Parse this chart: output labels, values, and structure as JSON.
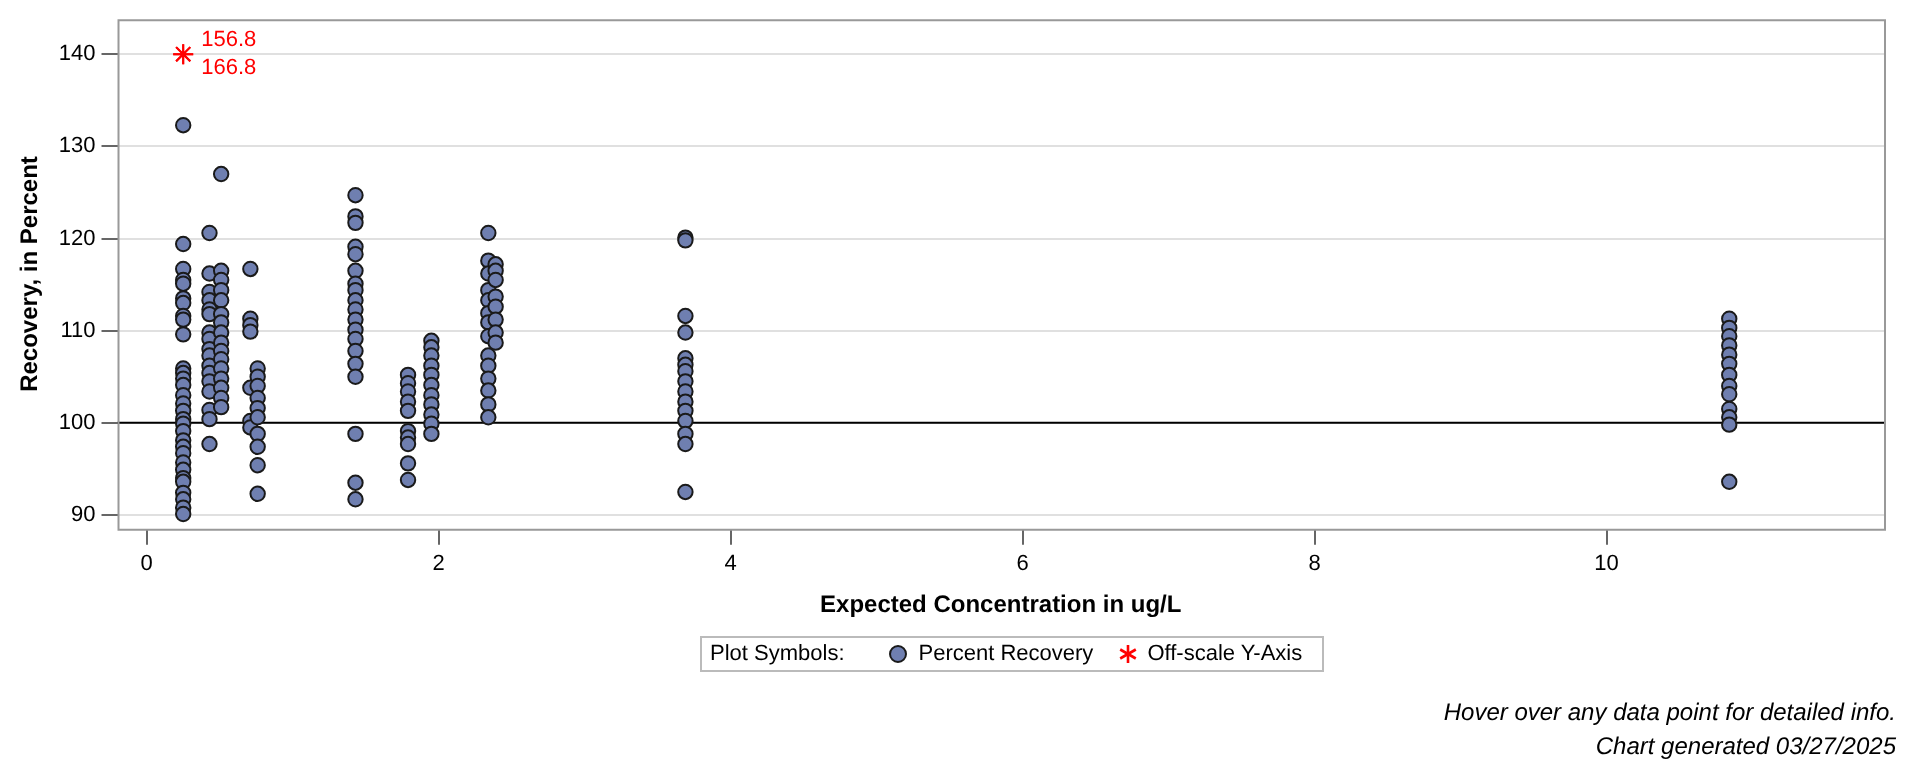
{
  "chart_data": {
    "type": "scatter",
    "xlabel": "Expected Concentration in ug/L",
    "ylabel": "Recovery, in Percent",
    "legend_title": "Plot Symbols:",
    "xlim": [
      -0.2,
      11.9
    ],
    "xticks": [
      0,
      2,
      4,
      6,
      8,
      10
    ],
    "ylim": [
      88.5,
      143.8
    ],
    "yticks": [
      90,
      100,
      110,
      120,
      130,
      140
    ],
    "grid": "y",
    "legend": "bottom",
    "ref_lines": [
      {
        "axis": "y",
        "value": 100,
        "color": "#000000"
      }
    ],
    "annotations": [
      {
        "text": "156.8",
        "x": 0.25,
        "y": 140
      },
      {
        "text": "166.8",
        "x": 0.25,
        "y": 140
      },
      "Hover over any data point for detailed info.",
      "Chart generated 03/27/2025"
    ],
    "series": [
      {
        "name": "Percent Recovery",
        "color": "#6f7fb0",
        "marker": "circle",
        "x": [
          0.25,
          0.25,
          0.25,
          0.25,
          0.25,
          0.25,
          0.25,
          0.25,
          0.25,
          0.25,
          0.25,
          0.25,
          0.25,
          0.25,
          0.25,
          0.25,
          0.25,
          0.25,
          0.25,
          0.25,
          0.25,
          0.25,
          0.25,
          0.25,
          0.25,
          0.25,
          0.25,
          0.25,
          0.25,
          0.25,
          0.25,
          0.43,
          0.43,
          0.43,
          0.43,
          0.43,
          0.43,
          0.43,
          0.43,
          0.43,
          0.43,
          0.43,
          0.43,
          0.43,
          0.43,
          0.43,
          0.43,
          0.43,
          0.51,
          0.51,
          0.51,
          0.51,
          0.51,
          0.51,
          0.51,
          0.51,
          0.51,
          0.51,
          0.51,
          0.51,
          0.51,
          0.51,
          0.51,
          0.51,
          0.71,
          0.71,
          0.71,
          0.71,
          0.71,
          0.71,
          0.71,
          0.76,
          0.76,
          0.76,
          0.76,
          0.76,
          0.76,
          0.76,
          0.76,
          0.76,
          0.76,
          1.43,
          1.43,
          1.43,
          1.43,
          1.43,
          1.43,
          1.43,
          1.43,
          1.43,
          1.43,
          1.43,
          1.43,
          1.43,
          1.43,
          1.43,
          1.43,
          1.43,
          1.43,
          1.43,
          1.79,
          1.79,
          1.79,
          1.79,
          1.79,
          1.79,
          1.79,
          1.79,
          1.79,
          1.79,
          1.95,
          1.95,
          1.95,
          1.95,
          1.95,
          1.95,
          1.95,
          1.95,
          1.95,
          1.95,
          1.95,
          2.34,
          2.34,
          2.34,
          2.34,
          2.34,
          2.34,
          2.34,
          2.34,
          2.34,
          2.34,
          2.34,
          2.34,
          2.34,
          2.34,
          2.39,
          2.39,
          2.39,
          2.39,
          2.39,
          2.39,
          2.39,
          2.39,
          3.69,
          3.69,
          3.69,
          3.69,
          3.69,
          3.69,
          3.69,
          3.69,
          3.69,
          3.69,
          3.69,
          3.69,
          3.69,
          3.69,
          3.69,
          10.84,
          10.84,
          10.84,
          10.84,
          10.84,
          10.84,
          10.84,
          10.84,
          10.84,
          10.84,
          10.84,
          10.84,
          10.84
        ],
        "values": [
          132.3,
          119.4,
          116.7,
          115.5,
          115.1,
          113.5,
          113,
          111.6,
          111.2,
          109.6,
          105.9,
          105.4,
          104.8,
          104.1,
          103,
          102.1,
          101.3,
          100.4,
          99.9,
          99.1,
          98.1,
          97.4,
          96.7,
          95.7,
          94.9,
          94,
          93.6,
          92.4,
          91.7,
          90.8,
          90.1,
          120.6,
          116.2,
          114.2,
          113.3,
          112.3,
          111.8,
          109.8,
          109.1,
          108,
          107.3,
          106.2,
          105.4,
          104.5,
          103.4,
          101.4,
          100.4,
          97.7,
          127,
          116.5,
          115.5,
          114.4,
          113.3,
          111.8,
          110.9,
          109.8,
          108.7,
          107.8,
          106.9,
          105.9,
          104.8,
          103.8,
          102.7,
          101.7,
          116.7,
          111.3,
          110.6,
          109.9,
          103.8,
          100.2,
          99.5,
          105.9,
          105,
          104,
          102.7,
          101.6,
          100.6,
          98.8,
          97.4,
          95.4,
          92.3,
          124.7,
          122.4,
          121.7,
          119.1,
          118.3,
          116.5,
          115.1,
          114.4,
          113.3,
          112.3,
          111.2,
          110.1,
          109.1,
          107.8,
          106.4,
          105,
          98.8,
          93.5,
          91.7,
          105.2,
          104.3,
          103.4,
          102.3,
          101.3,
          99.1,
          98.4,
          97.7,
          95.6,
          93.8,
          108.9,
          108.2,
          107.3,
          106.2,
          105.2,
          104.1,
          103,
          102,
          100.9,
          99.9,
          98.8,
          120.6,
          117.6,
          116.2,
          114.4,
          113.3,
          111.9,
          110.9,
          109.4,
          107.3,
          106.2,
          104.8,
          103.5,
          102,
          100.6,
          117.2,
          116.5,
          115.5,
          113.7,
          112.6,
          111.2,
          109.8,
          108.7,
          120.1,
          119.8,
          111.6,
          109.8,
          107,
          106.3,
          105.6,
          104.5,
          103.4,
          102.3,
          101.3,
          100.2,
          98.8,
          97.7,
          92.5,
          111.3,
          110.3,
          109.4,
          108.4,
          107.4,
          106.4,
          105.2,
          104,
          103.1,
          101.5,
          100.6,
          99.8,
          93.6
        ]
      },
      {
        "name": "Off-scale Y-Axis",
        "color": "#ff0000",
        "marker": "cross",
        "x": [
          0.25,
          0.25
        ],
        "values": [
          140,
          140
        ]
      }
    ]
  }
}
